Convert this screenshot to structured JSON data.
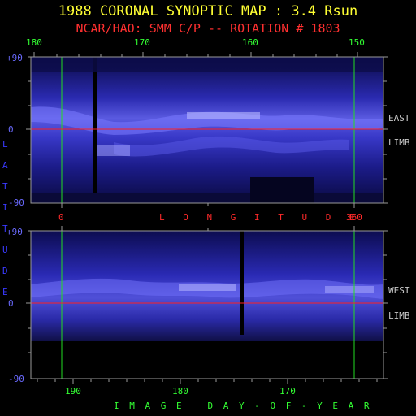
{
  "header": {
    "title": "1988 CORONAL SYNOPTIC MAP : 3.4 Rsun",
    "subtitle": "NCAR/HAO: SMM C/P -- ROTATION # 1803"
  },
  "top_panel": {
    "carrington_ticks": [
      "180",
      "170",
      "160",
      "150"
    ],
    "lat_ticks": [
      "+90",
      "0",
      "-90"
    ],
    "limb_label_1": "EAST",
    "limb_label_2": "LIMB",
    "longitude_ticks": [
      "0",
      "360"
    ],
    "longitude_title": "L O N G I T U D E"
  },
  "bottom_panel": {
    "lat_ticks": [
      "+90",
      "0",
      "-90"
    ],
    "limb_label_1": "WEST",
    "limb_label_2": "LIMB",
    "day_ticks": [
      "190",
      "180",
      "170"
    ],
    "day_title": "I M A G E   D A Y - O F - Y E A R"
  },
  "latitude_letters": [
    "L",
    "A",
    "T",
    "I",
    "T",
    "U",
    "D",
    "E"
  ],
  "colors": {
    "title": "#ffff33",
    "subtitle": "#ff3030",
    "green_marker": "#22dd22",
    "red_equator": "#ff2020",
    "axis": "#9a9a9a",
    "map_dark": "#0a0a40",
    "map_bright": "#c8c8ff"
  }
}
